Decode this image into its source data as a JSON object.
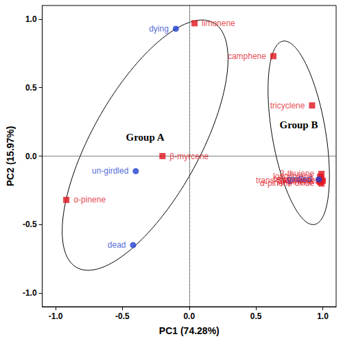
{
  "chart_data": {
    "type": "scatter",
    "xlabel": "PC1 (74.28%)",
    "ylabel": "PC2 (15.97%)",
    "xlim": [
      -1.1,
      1.1
    ],
    "ylim": [
      -1.1,
      1.1
    ],
    "xticks": [
      {
        "value": -1,
        "label": "-1.0"
      },
      -0.5,
      {
        "value": 0,
        "label": "0.0"
      },
      0.5,
      {
        "value": 1,
        "label": "1.0"
      }
    ],
    "yticks": [
      {
        "value": -1,
        "label": "-1.0"
      },
      -0.5,
      {
        "value": 0,
        "label": "0.0"
      },
      0.5,
      {
        "value": 1,
        "label": "1.0"
      }
    ],
    "grid": false,
    "series": [
      {
        "marker": "square",
        "color": "#e0141e",
        "labels": [
          "limonene",
          "camphene",
          "tricyclene",
          "β-myrcene",
          "α-pinene",
          "3-thujene",
          "longifolene",
          "terpinolene",
          "sabinene",
          "β-pinene",
          "trans-β-ocimene",
          "α-pinene oxide"
        ],
        "x": [
          0.04,
          0.63,
          0.92,
          -0.2,
          -0.92,
          0.99,
          0.98,
          0.99,
          0.97,
          0.98,
          1.0,
          0.99
        ],
        "y": [
          0.97,
          0.73,
          0.37,
          0.0,
          -0.32,
          -0.13,
          -0.15,
          -0.17,
          -0.18,
          -0.19,
          -0.18,
          -0.2
        ]
      },
      {
        "marker": "circle",
        "color": "#1f3fd0",
        "labels": [
          "dying",
          "un-girdled",
          "dead",
          "girdled"
        ],
        "x": [
          -0.1,
          -0.4,
          -0.42,
          0.97
        ],
        "y": [
          0.93,
          -0.11,
          -0.65,
          -0.17
        ]
      }
    ],
    "groups": [
      {
        "label": "Group A",
        "center": [
          -0.33,
          0.08
        ],
        "semi_axes": [
          1.03,
          0.4
        ],
        "angle": 60
      },
      {
        "label": "Group B",
        "center": [
          0.82,
          0.17
        ],
        "semi_axes": [
          0.68,
          0.2
        ],
        "angle": 100
      }
    ],
    "ref_lines": [
      {
        "axis": "x",
        "value": 0
      },
      {
        "axis": "y",
        "value": 0
      }
    ]
  }
}
